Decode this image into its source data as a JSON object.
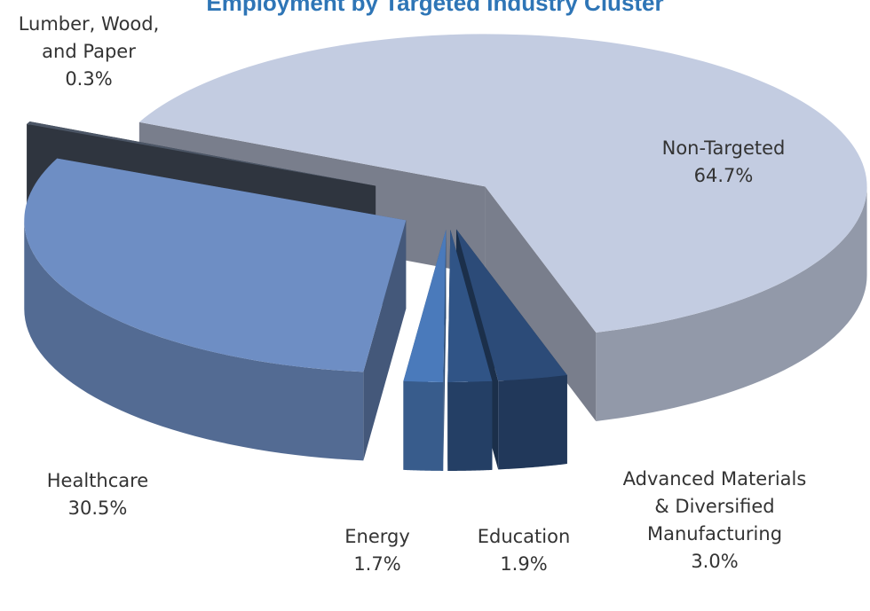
{
  "chart_data": {
    "type": "pie",
    "title": "Employment by Targeted Industry Cluster",
    "categories": [
      "Non-Targeted",
      "Advanced Materials & Diversified Manufacturing",
      "Education",
      "Energy",
      "Healthcare",
      "Lumber, Wood, and Paper"
    ],
    "values": [
      64.7,
      3.0,
      1.9,
      1.7,
      30.5,
      0.3
    ],
    "value_labels": [
      "64.7%",
      "3.0%",
      "1.9%",
      "1.7%",
      "30.5%",
      "0.3%"
    ],
    "colors": [
      "#c3cce1",
      "#2c4b78",
      "#305486",
      "#4a7abb",
      "#6e8ec4",
      "#4c5666"
    ]
  }
}
